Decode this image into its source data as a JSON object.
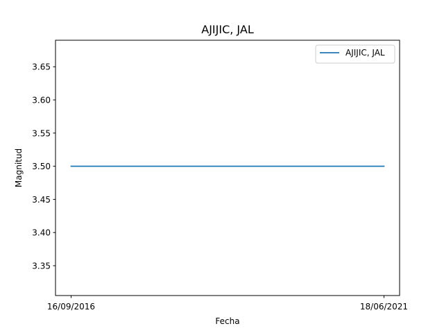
{
  "chart_data": {
    "type": "line",
    "title": "AJIJIC, JAL",
    "xlabel": "Fecha",
    "ylabel": "Magnitud",
    "x": [
      "16/09/2016",
      "18/06/2021"
    ],
    "series": [
      {
        "name": "AJIJIC, JAL",
        "values": [
          3.5,
          3.5
        ],
        "color": "#1f77b4"
      }
    ],
    "ylim": [
      3.305,
      3.69
    ],
    "yticks": [
      "3.35",
      "3.40",
      "3.45",
      "3.50",
      "3.55",
      "3.60",
      "3.65"
    ],
    "xticks": [
      "16/09/2016",
      "18/06/2021"
    ],
    "grid": false,
    "legend": "upper right"
  }
}
